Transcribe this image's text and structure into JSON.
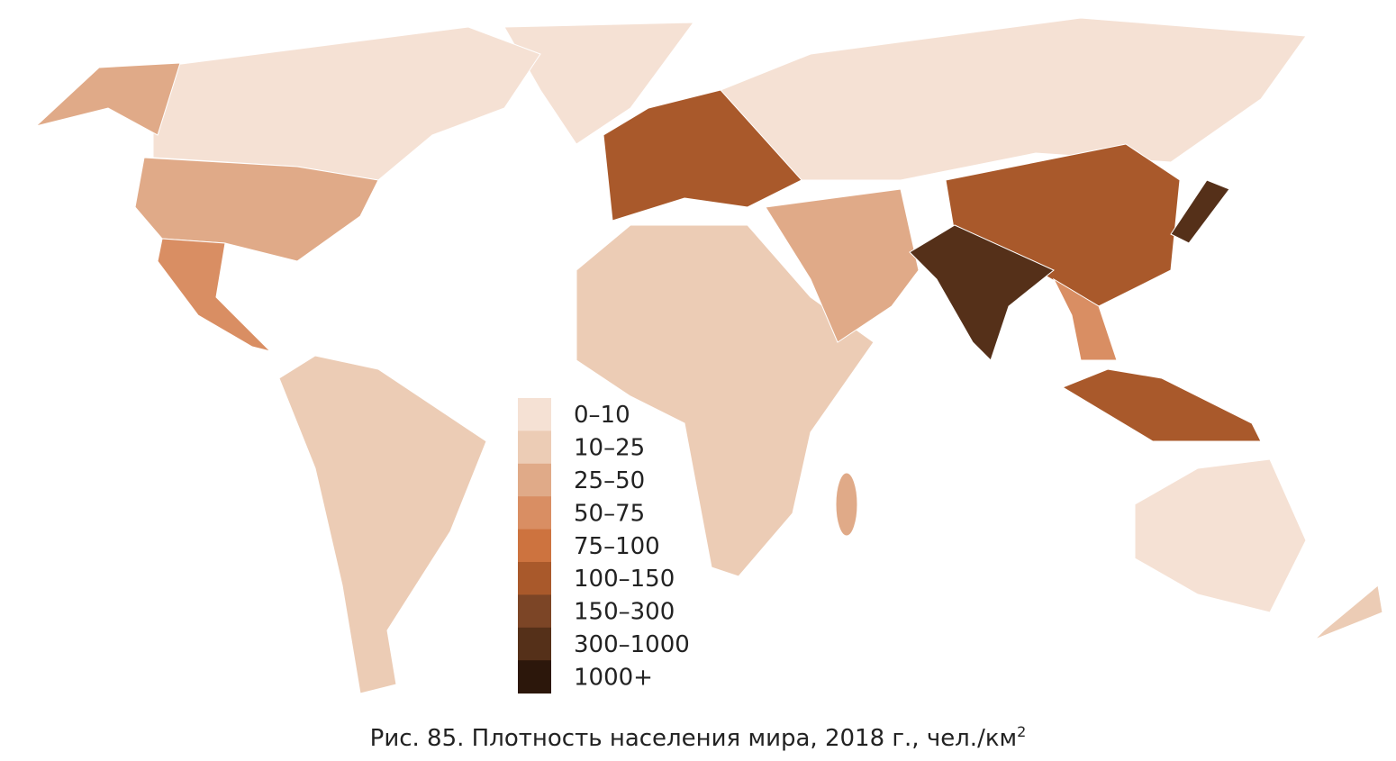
{
  "legend": {
    "items": [
      {
        "label": "0–10",
        "color": "#f5e1d4"
      },
      {
        "label": "10–25",
        "color": "#ecccb5"
      },
      {
        "label": "25–50",
        "color": "#e0aa88"
      },
      {
        "label": "50–75",
        "color": "#d98e63"
      },
      {
        "label": "75–100",
        "color": "#cd733f"
      },
      {
        "label": "100–150",
        "color": "#a9592b"
      },
      {
        "label": "150–300",
        "color": "#7c4526"
      },
      {
        "label": "300–1000",
        "color": "#553019"
      },
      {
        "label": "1000+",
        "color": "#2c170b"
      }
    ]
  },
  "caption": {
    "text": "Рис. 85. Плотность населения мира, 2018 г., чел./км",
    "superscript": "2"
  }
}
